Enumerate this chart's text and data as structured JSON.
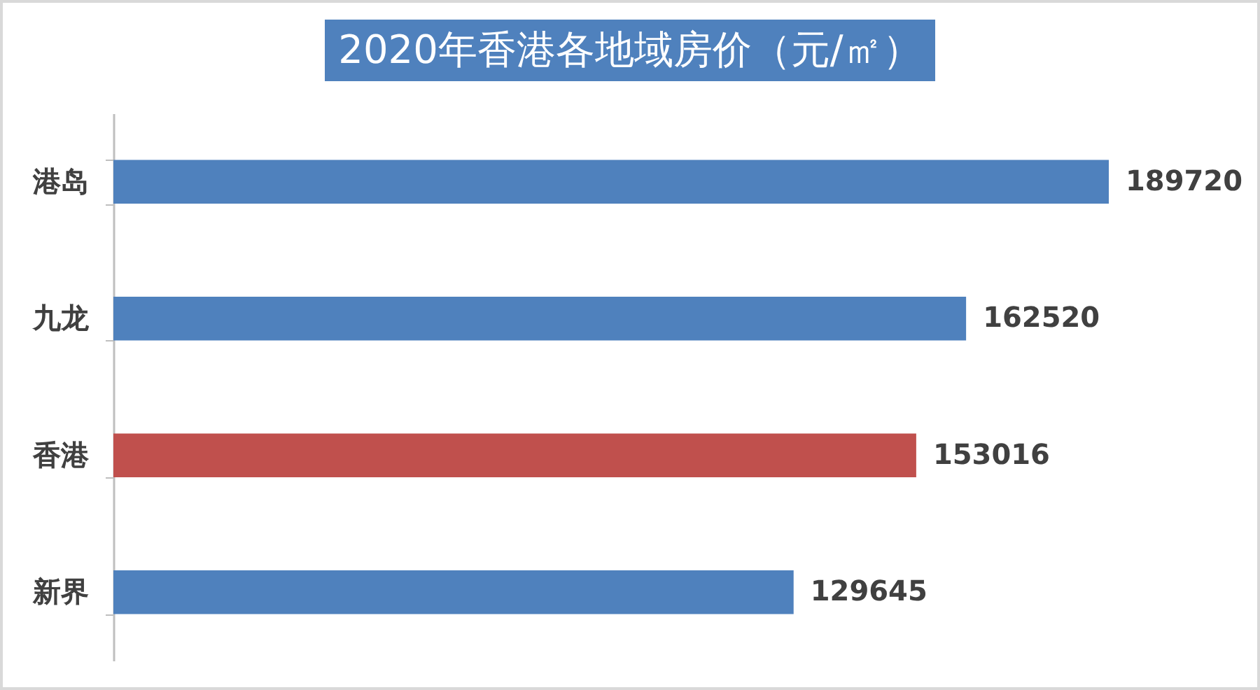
{
  "chart_data": {
    "type": "bar",
    "orientation": "horizontal",
    "title": "2020年香港各地域房价（元/㎡）",
    "categories": [
      "港岛",
      "九龙",
      "香港",
      "新界"
    ],
    "values": [
      189720,
      162520,
      153016,
      129645
    ],
    "colors": [
      "#4f81bd",
      "#4f81bd",
      "#c0504d",
      "#4f81bd"
    ],
    "data_labels": true
  }
}
